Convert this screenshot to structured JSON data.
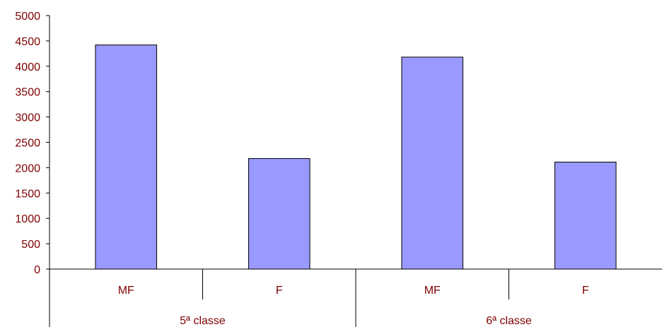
{
  "chart_data": {
    "type": "bar",
    "groups": [
      {
        "label": "5ª classe",
        "categories": [
          "MF",
          "F"
        ],
        "values": [
          4420,
          2180
        ]
      },
      {
        "label": "6ª classe",
        "categories": [
          "MF",
          "F"
        ],
        "values": [
          4180,
          2110
        ]
      }
    ],
    "ylim": [
      0,
      5000
    ],
    "yticks": [
      "0",
      "500",
      "1000",
      "1500",
      "2000",
      "2500",
      "3000",
      "3500",
      "4000",
      "4500",
      "5000"
    ],
    "bar_color": "#9999FF",
    "bar_stroke": "#000000",
    "label_color": "#800000",
    "grid": false,
    "legend": "none"
  }
}
